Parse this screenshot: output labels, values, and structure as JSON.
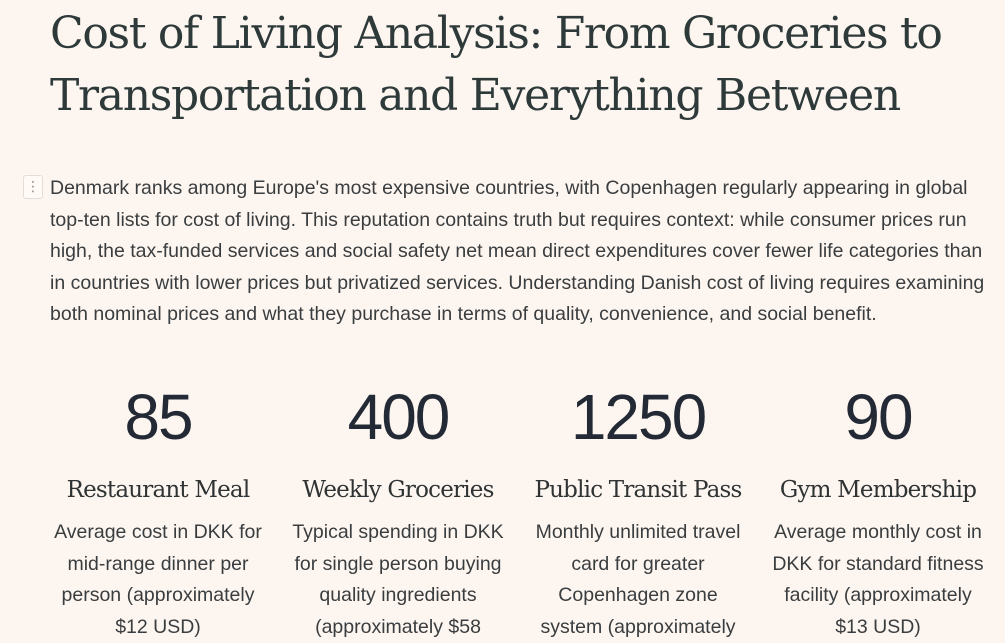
{
  "article": {
    "title": "Cost of Living Analysis: From Groceries to Transportation and Everything Between",
    "intro": "Denmark ranks among Europe's most expensive countries, with Copenhagen regularly appearing in global top-ten lists for cost of living. This reputation contains truth but requires context: while consumer prices run high, the tax-funded services and social safety net mean direct expenditures cover fewer life categories than in countries with lower prices but privatized services. Understanding Danish cost of living requires examining both nominal prices and what they purchase in terms of quality, convenience, and social benefit."
  },
  "drag_handle": {
    "glyph": "⋮",
    "icon": "drag-handle-icon"
  },
  "stats": [
    {
      "number": "85",
      "title": "Restaurant Meal",
      "description": "Average cost in DKK for mid-range dinner per person (approximately $12 USD)"
    },
    {
      "number": "400",
      "title": "Weekly Groceries",
      "description": "Typical spending in DKK for single person buying quality ingredients (approximately $58"
    },
    {
      "number": "1250",
      "title": "Public Transit Pass",
      "description": "Monthly unlimited travel card for greater Copenhagen zone system (approximately"
    },
    {
      "number": "90",
      "title": "Gym Membership",
      "description": "Average monthly cost in DKK for standard fitness facility (approximately $13 USD)"
    }
  ],
  "colors": {
    "background": "#fdf6f0",
    "heading": "#2e3a3a",
    "body_text": "#3a3d3f",
    "stat_number": "#232a36"
  }
}
